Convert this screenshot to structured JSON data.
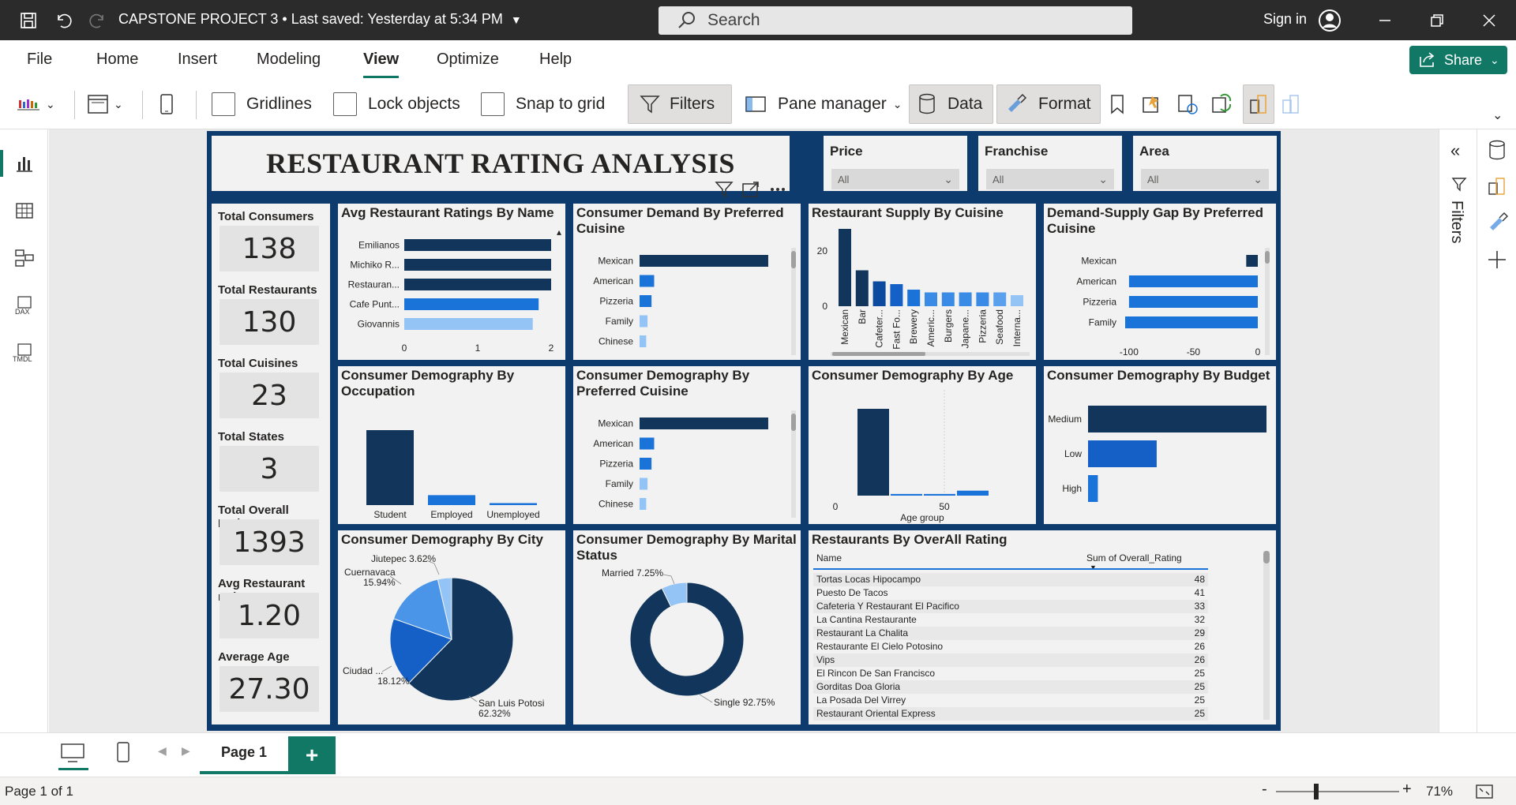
{
  "titlebar": {
    "title": "CAPSTONE PROJECT 3 • Last saved: Yesterday at 5:34 PM",
    "search_placeholder": "Search",
    "sign_in": "Sign in"
  },
  "menu": {
    "items": [
      "File",
      "Home",
      "Insert",
      "Modeling",
      "View",
      "Optimize",
      "Help"
    ],
    "active": "View",
    "share": "Share"
  },
  "ribbon": {
    "gridlines": "Gridlines",
    "lock_objects": "Lock objects",
    "snap_to_grid": "Snap to grid",
    "filters": "Filters",
    "pane_manager": "Pane manager",
    "data": "Data",
    "format": "Format"
  },
  "report": {
    "title": "RESTAURANT RATING ANALYSIS",
    "slicers": [
      {
        "label": "Price",
        "value": "All"
      },
      {
        "label": "Franchise",
        "value": "All"
      },
      {
        "label": "Area",
        "value": "All"
      }
    ],
    "kpis": [
      {
        "label": "Total Consumers",
        "value": "138"
      },
      {
        "label": "Total Restaurants",
        "value": "130"
      },
      {
        "label": "Total Cuisines",
        "value": "23"
      },
      {
        "label": "Total States",
        "value": "3"
      },
      {
        "label": "Total Overall Rating",
        "value": "1393"
      },
      {
        "label": "Avg Restaurant rating",
        "value": "1.20"
      },
      {
        "label": "Average Age",
        "value": "27.30"
      }
    ],
    "visual_titles": {
      "avg_ratings": "Avg Restaurant Ratings By Name",
      "demand": "Consumer Demand By Preferred Cuisine",
      "supply": "Restaurant Supply By Cuisine",
      "gap": "Demand-Supply Gap By Preferred Cuisine",
      "occupation": "Consumer Demography By Occupation",
      "pref_cuisine": "Consumer Demography By Preferred Cuisine",
      "age": "Consumer Demography By Age",
      "budget": "Consumer Demography By Budget",
      "city": "Consumer Demography By City",
      "marital": "Consumer Demography By Marital Status",
      "table": "Restaurants By OverAll Rating"
    },
    "table": {
      "col1": "Name",
      "col2": "Sum of Overall_Rating"
    }
  },
  "chart_data": [
    {
      "type": "bar",
      "id": "avg_ratings",
      "orientation": "horizontal",
      "categories": [
        "Emilianos",
        "Michiko R...",
        "Restauran...",
        "Cafe Punt...",
        "Giovannis"
      ],
      "values": [
        2,
        2,
        2,
        1.83,
        1.75
      ],
      "xticks": [
        "0",
        "1",
        "2"
      ],
      "xlim": [
        0,
        2
      ],
      "colors": [
        "#12355b",
        "#12355b",
        "#12355b",
        "#1a73d9",
        "#94c4f5"
      ]
    },
    {
      "type": "bar",
      "id": "demand",
      "orientation": "horizontal",
      "categories": [
        "Mexican",
        "American",
        "Pizzeria",
        "Family",
        "Chinese"
      ],
      "values": [
        97,
        11,
        9,
        6,
        5
      ],
      "xlim": [
        0,
        100
      ],
      "colors": [
        "#12355b",
        "#1a73d9",
        "#1a73d9",
        "#94c4f5",
        "#94c4f5"
      ]
    },
    {
      "type": "bar",
      "id": "supply",
      "orientation": "vertical",
      "categories": [
        "Mexican",
        "Bar",
        "Cafeter...",
        "Fast Fo...",
        "Brewery",
        "Americ...",
        "Burgers",
        "Japane...",
        "Pizzeria",
        "Seafood",
        "Interna..."
      ],
      "values": [
        28,
        13,
        9,
        8,
        6,
        5,
        5,
        5,
        5,
        5,
        4
      ],
      "yticks": [
        "0",
        "20"
      ],
      "ylim": [
        0,
        30
      ],
      "colors": [
        "#12355b",
        "#12355b",
        "#0b4a9e",
        "#1560c6",
        "#1a73d9",
        "#3a8be6",
        "#3a8be6",
        "#3a8be6",
        "#3a8be6",
        "#5aa0ec",
        "#94c4f5"
      ]
    },
    {
      "type": "bar",
      "id": "gap",
      "orientation": "horizontal",
      "categories": [
        "Mexican",
        "American",
        "Pizzeria",
        "Family"
      ],
      "values": [
        -9,
        -100,
        -100,
        -103
      ],
      "xticks": [
        "-100",
        "-50",
        "0"
      ],
      "xlim": [
        -103,
        0
      ],
      "colors": [
        "#12355b",
        "#1a73d9",
        "#1a73d9",
        "#1a73d9"
      ]
    },
    {
      "type": "bar",
      "id": "occupation",
      "orientation": "vertical",
      "categories": [
        "Student",
        "Employed",
        "Unemployed"
      ],
      "values": [
        113,
        15,
        3
      ],
      "colors": [
        "#12355b",
        "#1a73d9",
        "#1a73d9"
      ]
    },
    {
      "type": "bar",
      "id": "pref_cuisine",
      "orientation": "horizontal",
      "categories": [
        "Mexican",
        "American",
        "Pizzeria",
        "Family",
        "Chinese"
      ],
      "values": [
        97,
        11,
        9,
        6,
        5
      ],
      "xlim": [
        0,
        100
      ],
      "colors": [
        "#12355b",
        "#1a73d9",
        "#1a73d9",
        "#94c4f5",
        "#94c4f5"
      ]
    },
    {
      "type": "bar",
      "id": "age",
      "orientation": "vertical",
      "xlabel": "Age group",
      "xticks": [
        "0",
        "50"
      ],
      "values": [
        105,
        2,
        2,
        6
      ],
      "colors": [
        "#12355b",
        "#1a73d9",
        "#1a73d9",
        "#1a73d9"
      ]
    },
    {
      "type": "bar",
      "id": "budget",
      "orientation": "horizontal",
      "categories": [
        "Medium",
        "Low",
        "High"
      ],
      "values": [
        91,
        35,
        5
      ],
      "colors": [
        "#12355b",
        "#1560c6",
        "#1a73d9"
      ]
    },
    {
      "type": "pie",
      "id": "city",
      "labels": [
        "San Luis Potosi",
        "Ciudad ...",
        "Cuernavaca",
        "Jiutepec"
      ],
      "values": [
        62.32,
        18.12,
        15.94,
        3.62
      ],
      "label_text": [
        "San Luis Potosi 62.32%",
        "Ciudad ... 18.12%",
        "Cuernavaca 15.94%",
        "Jiutepec 3.62%"
      ],
      "colors": [
        "#12355b",
        "#1560c6",
        "#4a95e8",
        "#94c4f5"
      ]
    },
    {
      "type": "pie",
      "id": "marital",
      "donut": true,
      "labels": [
        "Single",
        "Married"
      ],
      "values": [
        92.75,
        7.25
      ],
      "label_text": [
        "Single 92.75%",
        "Married 7.25%"
      ],
      "colors": [
        "#12355b",
        "#94c4f5"
      ]
    },
    {
      "type": "table",
      "id": "table",
      "columns": [
        "Name",
        "Sum of Overall_Rating"
      ],
      "rows": [
        [
          "Tortas Locas Hipocampo",
          "48"
        ],
        [
          "Puesto De Tacos",
          "41"
        ],
        [
          "Cafeteria Y Restaurant El Pacifico",
          "33"
        ],
        [
          "La Cantina Restaurante",
          "32"
        ],
        [
          "Restaurant La Chalita",
          "29"
        ],
        [
          "Restaurante El Cielo Potosino",
          "26"
        ],
        [
          "Vips",
          "26"
        ],
        [
          "El Rincon De San Francisco",
          "25"
        ],
        [
          "Gorditas Doa Gloria",
          "25"
        ],
        [
          "La Posada Del Virrey",
          "25"
        ],
        [
          "Restaurant Oriental Express",
          "25"
        ]
      ]
    }
  ],
  "pages": {
    "tab": "Page 1"
  },
  "status": {
    "page": "Page 1 of 1",
    "zoom": "71%"
  }
}
